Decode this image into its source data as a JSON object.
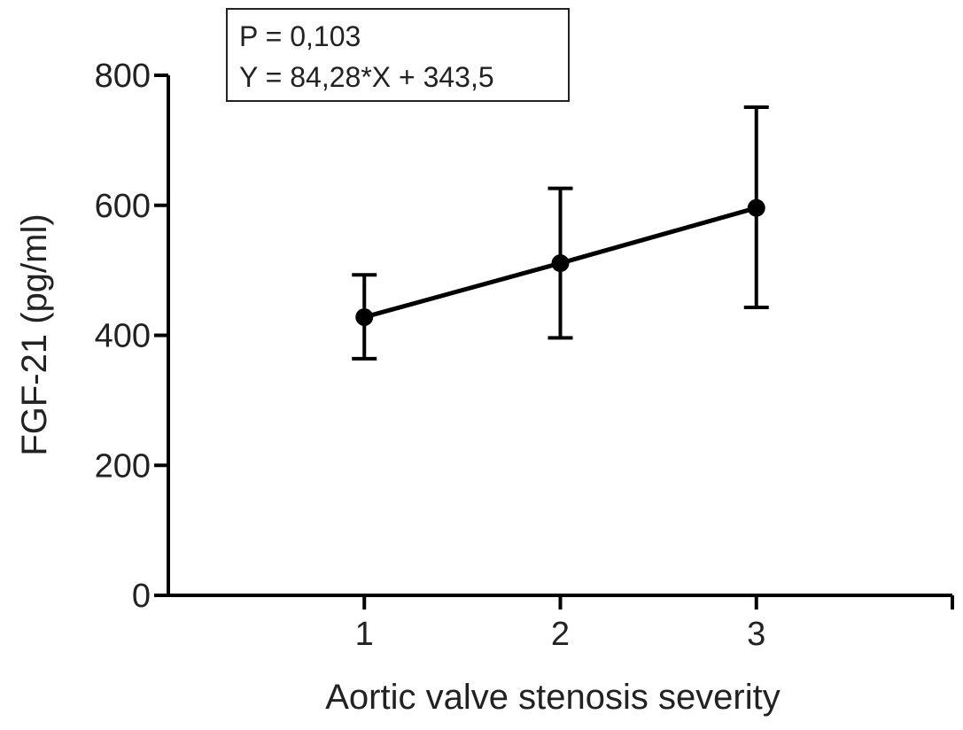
{
  "chart_data": {
    "type": "line",
    "title": "",
    "xlabel": "Aortic valve stenosis severity",
    "ylabel": "FGF-21 (pg/ml)",
    "xlim": [
      0,
      4
    ],
    "ylim": [
      0,
      800
    ],
    "x_ticks": [
      1,
      2,
      3
    ],
    "x_tick_labels": [
      "1",
      "2",
      "3"
    ],
    "y_ticks": [
      0,
      200,
      400,
      600,
      800
    ],
    "y_tick_labels": [
      "0",
      "200",
      "400",
      "600",
      "800"
    ],
    "grid": false,
    "legend": "none",
    "series": [
      {
        "x": [
          1,
          2,
          3
        ],
        "y": [
          428,
          511,
          596
        ],
        "error_lower": [
          364,
          396,
          443
        ],
        "error_upper": [
          493,
          626,
          751
        ],
        "color": "#000000"
      }
    ],
    "annotation": {
      "lines": [
        "P = 0,103",
        "Y = 84,28*X + 343,5"
      ]
    }
  }
}
